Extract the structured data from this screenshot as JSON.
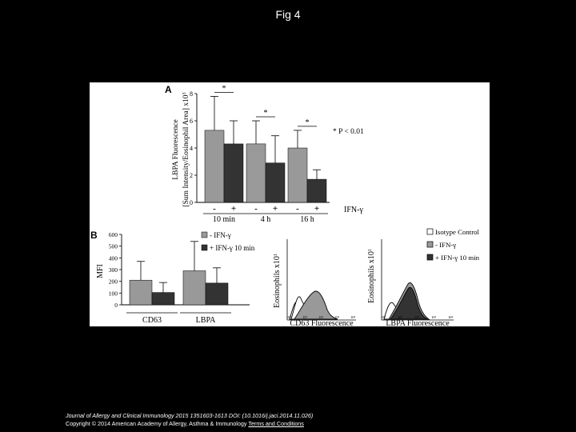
{
  "page": {
    "title": "Fig 4"
  },
  "chart_data": [
    {
      "type": "bar",
      "panel_label": "A",
      "ylabel_line1": "LBPA Fluorescence",
      "ylabel_line2": "[Sum Intensity/Eosinophil Area] x10",
      "ylabel_exp": "3",
      "ylim": [
        0,
        8
      ],
      "yticks": [
        "0",
        "2",
        "4",
        "6",
        "8"
      ],
      "categories": [
        "10 min",
        "4 h",
        "16 h"
      ],
      "treatment_axis_label": "IFN-γ",
      "treatment_signs": [
        "-",
        "+"
      ],
      "series": [
        {
          "name": "-",
          "color": "#999999",
          "values": [
            5.3,
            4.3,
            4.0
          ],
          "error": [
            2.5,
            1.7,
            1.3
          ]
        },
        {
          "name": "+",
          "color": "#333333",
          "values": [
            4.3,
            2.9,
            1.7
          ],
          "error": [
            1.7,
            2.0,
            0.7
          ]
        }
      ],
      "significance_marks": [
        "*",
        "*",
        "*"
      ],
      "annotation": "* P < 0.01"
    },
    {
      "type": "bar",
      "panel_label": "B",
      "ylabel": "MFI",
      "ylim": [
        0,
        600
      ],
      "yticks": [
        "0",
        "100",
        "200",
        "300",
        "400",
        "500",
        "600"
      ],
      "categories": [
        "CD63",
        "LBPA"
      ],
      "legend": [
        "- IFN-γ",
        "+ IFN-γ 10 min"
      ],
      "series": [
        {
          "name": "- IFN-γ",
          "color": "#999999",
          "values": [
            210,
            290
          ],
          "error": [
            160,
            250
          ]
        },
        {
          "name": "+ IFN-γ 10 min",
          "color": "#333333",
          "values": [
            105,
            185
          ],
          "error": [
            85,
            130
          ]
        }
      ]
    },
    {
      "type": "histogram",
      "ylabel": "Eosinophils x10",
      "ylabel_exp": "1",
      "xlabel": "CD63 Fluorescence",
      "xtick_labels": [
        "10⁰",
        "10¹",
        "10²",
        "10³",
        "10⁴"
      ]
    },
    {
      "type": "histogram",
      "ylabel": "Eosinophils x10",
      "ylabel_exp": "1",
      "xlabel": "LBPA Fluorescence",
      "xtick_labels": [
        "10⁰",
        "10¹",
        "10²",
        "10³",
        "10⁴"
      ],
      "legend": [
        "Isotype Control",
        "- IFN-γ",
        "+ IFN-γ 10 min"
      ]
    }
  ],
  "footer": {
    "journal": "Journal of Allergy and Clinical Immunology 2015 1351603-1613 DOI: (10.1016/j.jaci.2014.11.026)",
    "copyright": "Copyright © 2014 American Academy of Allergy, Asthma & Immunology ",
    "terms_link": "Terms and Conditions"
  },
  "colors": {
    "minus_bar": "#999999",
    "plus_bar": "#333333",
    "background": "#000000",
    "panel": "#ffffff"
  }
}
